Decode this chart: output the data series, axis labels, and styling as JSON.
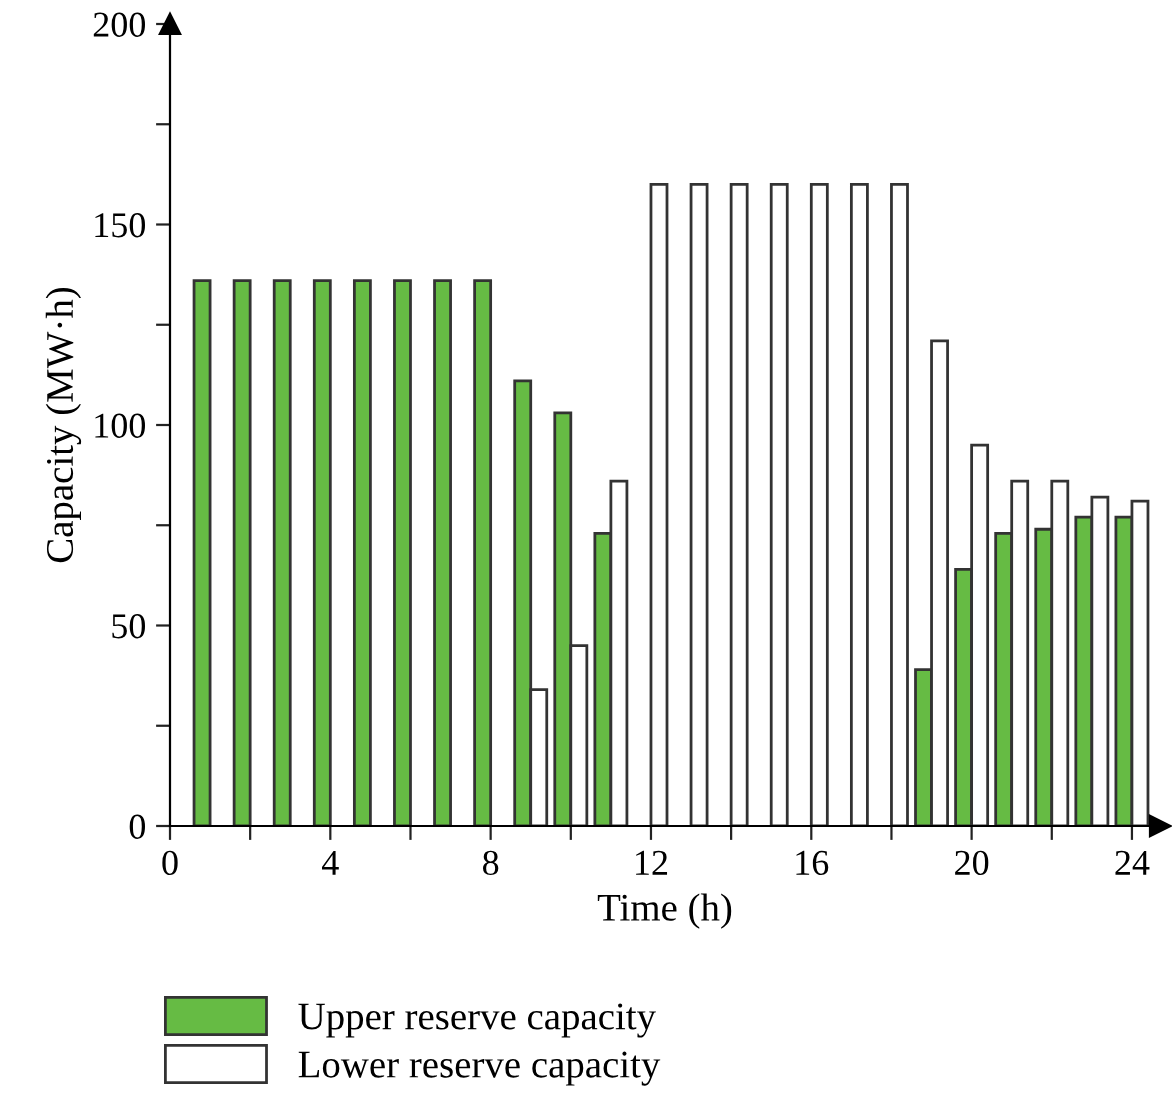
{
  "chart_data": {
    "type": "bar",
    "xlabel": "Time (h)",
    "ylabel": "Capacity (MW·h)",
    "x": [
      1,
      2,
      3,
      4,
      5,
      6,
      7,
      8,
      9,
      10,
      11,
      12,
      13,
      14,
      15,
      16,
      17,
      18,
      19,
      20,
      21,
      22,
      23,
      24
    ],
    "series": [
      {
        "name": "Upper reserve capacity",
        "color": "#66bb44",
        "values": [
          136,
          136,
          136,
          136,
          136,
          136,
          136,
          136,
          111,
          103,
          73,
          null,
          null,
          null,
          null,
          null,
          null,
          null,
          39,
          64,
          73,
          74,
          77,
          77
        ]
      },
      {
        "name": "Lower reserve capacity",
        "color": "#ffffff",
        "values": [
          null,
          null,
          null,
          null,
          null,
          null,
          null,
          null,
          34,
          45,
          86,
          160,
          160,
          160,
          160,
          160,
          160,
          160,
          121,
          95,
          86,
          86,
          82,
          81
        ]
      }
    ],
    "xlim": [
      0,
      24.7
    ],
    "ylim": [
      0,
      200
    ],
    "xticks": [
      0,
      {
        "value": 2,
        "label": null
      },
      4,
      {
        "value": 6,
        "label": null
      },
      8,
      {
        "value": 10,
        "label": null
      },
      12,
      {
        "value": 14,
        "label": null
      },
      16,
      {
        "value": 18,
        "label": null
      },
      20,
      {
        "value": 22,
        "label": null
      },
      24
    ],
    "yticks": [
      0,
      {
        "value": 25,
        "label": null
      },
      50,
      {
        "value": 75,
        "label": null
      },
      100,
      {
        "value": 125,
        "label": null
      },
      150,
      {
        "value": 175,
        "label": null
      },
      200
    ],
    "grid": false,
    "legend": "bottom"
  }
}
